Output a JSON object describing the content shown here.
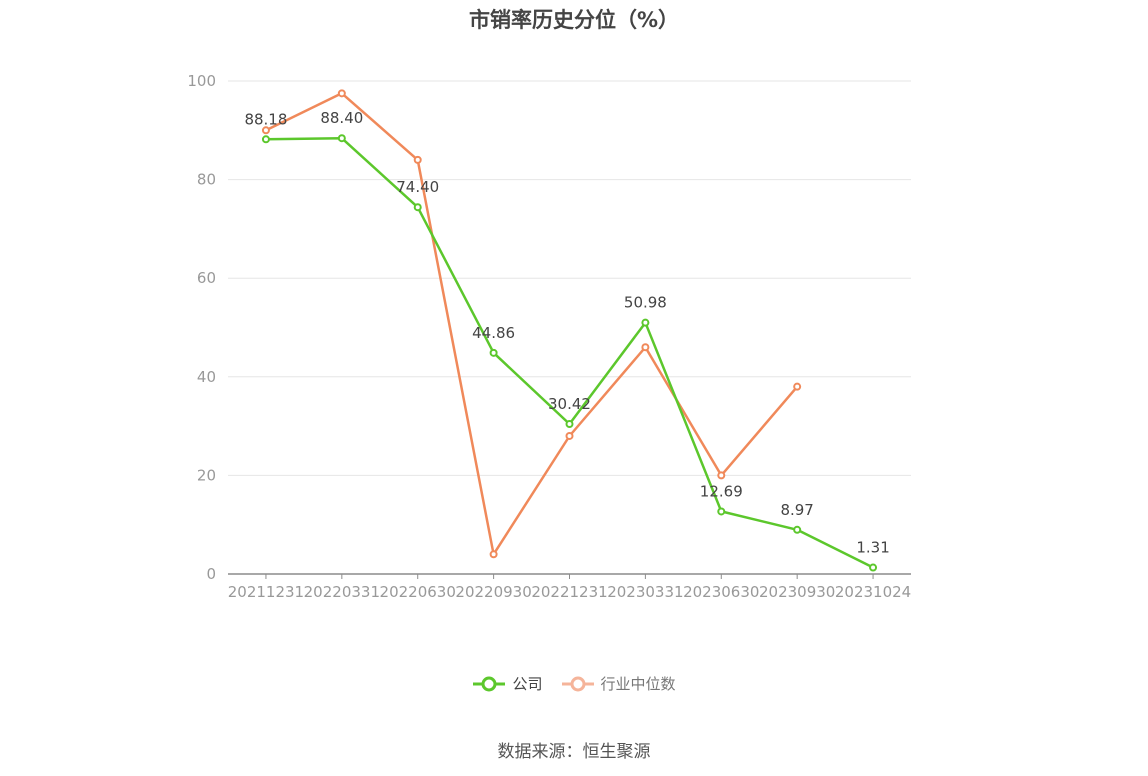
{
  "chart_data": {
    "type": "line",
    "title": "市销率历史分位（%）",
    "categories": [
      "20211231",
      "20220331",
      "20220630",
      "20220930",
      "20221231",
      "20230331",
      "20230630",
      "20230930",
      "20231024"
    ],
    "ylim": [
      0,
      100
    ],
    "yticks": [
      0,
      20,
      40,
      60,
      80,
      100
    ],
    "grid": true,
    "legend_position": "bottom",
    "series": [
      {
        "name": "公司",
        "color": "#5cc72c",
        "values": [
          88.18,
          88.4,
          74.4,
          44.86,
          30.42,
          50.98,
          12.69,
          8.97,
          1.31
        ],
        "labels": [
          "88.18",
          "88.40",
          "74.40",
          "44.86",
          "30.42",
          "50.98",
          "12.69",
          "8.97",
          "1.31"
        ]
      },
      {
        "name": "行业中位数",
        "color": "#f0895a",
        "values": [
          90,
          97.5,
          84,
          4,
          28,
          46,
          20,
          38,
          null
        ]
      }
    ]
  },
  "legend": {
    "company_label": "公司",
    "industry_label": "行业中位数",
    "industry_swatch_color": "#f5b49a"
  },
  "source": "数据来源：恒生聚源"
}
